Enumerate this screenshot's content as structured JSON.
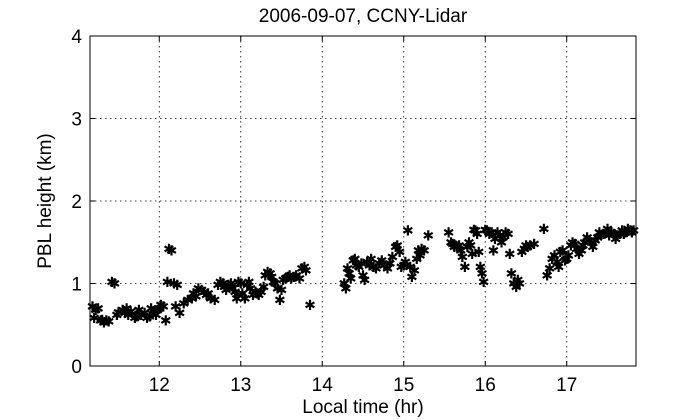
{
  "chart_data": {
    "type": "scatter",
    "title": "2006-09-07, CCNY-Lidar",
    "xlabel": "Local time (hr)",
    "ylabel": "PBL height (km)",
    "xlim": [
      11.15,
      17.85
    ],
    "ylim": [
      0,
      4
    ],
    "xticks": [
      12,
      13,
      14,
      15,
      16,
      17
    ],
    "yticks": [
      0,
      1,
      2,
      3,
      4
    ],
    "grid": true,
    "marker": "asterisk",
    "points": [
      [
        11.18,
        0.72
      ],
      [
        11.2,
        0.58
      ],
      [
        11.22,
        0.68
      ],
      [
        11.25,
        0.7
      ],
      [
        11.28,
        0.55
      ],
      [
        11.3,
        0.56
      ],
      [
        11.32,
        0.53
      ],
      [
        11.35,
        0.55
      ],
      [
        11.38,
        0.54
      ],
      [
        11.42,
        1.02
      ],
      [
        11.45,
        1.0
      ],
      [
        11.48,
        0.62
      ],
      [
        11.5,
        0.65
      ],
      [
        11.55,
        0.68
      ],
      [
        11.58,
        0.64
      ],
      [
        11.6,
        0.7
      ],
      [
        11.62,
        0.62
      ],
      [
        11.65,
        0.66
      ],
      [
        11.7,
        0.58
      ],
      [
        11.72,
        0.6
      ],
      [
        11.75,
        0.68
      ],
      [
        11.78,
        0.62
      ],
      [
        11.82,
        0.64
      ],
      [
        11.85,
        0.58
      ],
      [
        11.88,
        0.6
      ],
      [
        11.9,
        0.7
      ],
      [
        11.93,
        0.66
      ],
      [
        11.96,
        0.62
      ],
      [
        11.98,
        0.68
      ],
      [
        12.0,
        0.7
      ],
      [
        12.02,
        0.74
      ],
      [
        12.05,
        0.72
      ],
      [
        12.08,
        0.55
      ],
      [
        12.1,
        1.02
      ],
      [
        12.12,
        1.42
      ],
      [
        12.15,
        1.4
      ],
      [
        12.18,
        1.0
      ],
      [
        12.2,
        0.72
      ],
      [
        12.22,
        0.98
      ],
      [
        12.25,
        0.64
      ],
      [
        12.3,
        0.76
      ],
      [
        12.35,
        0.8
      ],
      [
        12.4,
        0.82
      ],
      [
        12.42,
        0.88
      ],
      [
        12.45,
        0.84
      ],
      [
        12.48,
        0.94
      ],
      [
        12.52,
        0.92
      ],
      [
        12.55,
        0.9
      ],
      [
        12.58,
        0.86
      ],
      [
        12.6,
        0.88
      ],
      [
        12.63,
        0.82
      ],
      [
        12.68,
        0.8
      ],
      [
        12.72,
        0.98
      ],
      [
        12.75,
        1.02
      ],
      [
        12.78,
        1.0
      ],
      [
        12.8,
        0.96
      ],
      [
        12.82,
        0.92
      ],
      [
        12.85,
        0.98
      ],
      [
        12.88,
        1.0
      ],
      [
        12.9,
        0.94
      ],
      [
        12.93,
        0.9
      ],
      [
        12.95,
        0.82
      ],
      [
        12.97,
        1.02
      ],
      [
        13.0,
        1.0
      ],
      [
        13.02,
        0.88
      ],
      [
        13.05,
        0.82
      ],
      [
        13.08,
        0.98
      ],
      [
        13.1,
        1.02
      ],
      [
        13.12,
        0.94
      ],
      [
        13.15,
        0.86
      ],
      [
        13.18,
        0.9
      ],
      [
        13.2,
        0.88
      ],
      [
        13.22,
        0.86
      ],
      [
        13.25,
        0.9
      ],
      [
        13.28,
        0.96
      ],
      [
        13.3,
        1.1
      ],
      [
        13.33,
        1.14
      ],
      [
        13.36,
        1.12
      ],
      [
        13.38,
        1.08
      ],
      [
        13.4,
        1.02
      ],
      [
        13.42,
        1.0
      ],
      [
        13.45,
        0.94
      ],
      [
        13.48,
        0.8
      ],
      [
        13.5,
        0.92
      ],
      [
        13.52,
        1.04
      ],
      [
        13.55,
        1.06
      ],
      [
        13.58,
        1.08
      ],
      [
        13.6,
        1.1
      ],
      [
        13.62,
        1.06
      ],
      [
        13.65,
        1.08
      ],
      [
        13.68,
        1.1
      ],
      [
        13.72,
        1.06
      ],
      [
        13.75,
        1.18
      ],
      [
        13.78,
        1.2
      ],
      [
        13.8,
        1.16
      ],
      [
        13.85,
        0.74
      ],
      [
        14.27,
        1.0
      ],
      [
        14.29,
        0.94
      ],
      [
        14.31,
        1.18
      ],
      [
        14.33,
        1.12
      ],
      [
        14.35,
        1.06
      ],
      [
        14.38,
        1.28
      ],
      [
        14.4,
        1.3
      ],
      [
        14.42,
        1.22
      ],
      [
        14.45,
        1.2
      ],
      [
        14.48,
        1.24
      ],
      [
        14.5,
        1.1
      ],
      [
        14.52,
        1.04
      ],
      [
        14.55,
        1.26
      ],
      [
        14.58,
        1.22
      ],
      [
        14.6,
        1.3
      ],
      [
        14.63,
        1.2
      ],
      [
        14.66,
        1.18
      ],
      [
        14.7,
        1.24
      ],
      [
        14.73,
        1.28
      ],
      [
        14.76,
        1.22
      ],
      [
        14.8,
        1.18
      ],
      [
        14.83,
        1.24
      ],
      [
        14.86,
        1.32
      ],
      [
        14.9,
        1.44
      ],
      [
        14.92,
        1.46
      ],
      [
        14.95,
        1.38
      ],
      [
        14.97,
        1.2
      ],
      [
        15.0,
        1.22
      ],
      [
        15.02,
        1.26
      ],
      [
        15.05,
        1.64
      ],
      [
        15.08,
        1.2
      ],
      [
        15.1,
        1.08
      ],
      [
        15.13,
        1.16
      ],
      [
        15.16,
        1.3
      ],
      [
        15.18,
        1.4
      ],
      [
        15.2,
        1.34
      ],
      [
        15.22,
        1.42
      ],
      [
        15.25,
        1.4
      ],
      [
        15.3,
        1.58
      ],
      [
        15.55,
        1.62
      ],
      [
        15.58,
        1.5
      ],
      [
        15.6,
        1.48
      ],
      [
        15.62,
        1.44
      ],
      [
        15.65,
        1.45
      ],
      [
        15.68,
        1.46
      ],
      [
        15.7,
        1.4
      ],
      [
        15.72,
        1.32
      ],
      [
        15.75,
        1.2
      ],
      [
        15.78,
        1.44
      ],
      [
        15.8,
        1.5
      ],
      [
        15.82,
        1.46
      ],
      [
        15.84,
        1.36
      ],
      [
        15.86,
        1.65
      ],
      [
        15.88,
        1.64
      ],
      [
        15.9,
        1.6
      ],
      [
        15.92,
        1.38
      ],
      [
        15.94,
        1.2
      ],
      [
        15.96,
        1.12
      ],
      [
        15.98,
        1.02
      ],
      [
        16.0,
        1.65
      ],
      [
        16.02,
        1.64
      ],
      [
        16.05,
        1.6
      ],
      [
        16.08,
        1.62
      ],
      [
        16.1,
        1.4
      ],
      [
        16.12,
        1.54
      ],
      [
        16.15,
        1.62
      ],
      [
        16.18,
        1.58
      ],
      [
        16.2,
        1.5
      ],
      [
        16.22,
        1.56
      ],
      [
        16.25,
        1.62
      ],
      [
        16.28,
        1.6
      ],
      [
        16.3,
        1.36
      ],
      [
        16.32,
        1.12
      ],
      [
        16.35,
        1.0
      ],
      [
        16.38,
        0.96
      ],
      [
        16.4,
        1.04
      ],
      [
        16.42,
        1.0
      ],
      [
        16.45,
        1.38
      ],
      [
        16.48,
        1.42
      ],
      [
        16.5,
        1.46
      ],
      [
        16.52,
        1.44
      ],
      [
        16.55,
        1.46
      ],
      [
        16.6,
        1.48
      ],
      [
        16.72,
        1.66
      ],
      [
        16.76,
        1.1
      ],
      [
        16.79,
        1.18
      ],
      [
        16.82,
        1.3
      ],
      [
        16.85,
        1.34
      ],
      [
        16.88,
        1.26
      ],
      [
        16.9,
        1.2
      ],
      [
        16.92,
        1.38
      ],
      [
        16.95,
        1.4
      ],
      [
        16.98,
        1.28
      ],
      [
        17.0,
        1.3
      ],
      [
        17.02,
        1.34
      ],
      [
        17.05,
        1.46
      ],
      [
        17.07,
        1.5
      ],
      [
        17.1,
        1.48
      ],
      [
        17.12,
        1.42
      ],
      [
        17.15,
        1.36
      ],
      [
        17.18,
        1.4
      ],
      [
        17.2,
        1.46
      ],
      [
        17.22,
        1.5
      ],
      [
        17.25,
        1.56
      ],
      [
        17.28,
        1.52
      ],
      [
        17.3,
        1.5
      ],
      [
        17.32,
        1.44
      ],
      [
        17.35,
        1.52
      ],
      [
        17.38,
        1.56
      ],
      [
        17.4,
        1.62
      ],
      [
        17.42,
        1.58
      ],
      [
        17.45,
        1.6
      ],
      [
        17.48,
        1.62
      ],
      [
        17.5,
        1.66
      ],
      [
        17.52,
        1.58
      ],
      [
        17.55,
        1.62
      ],
      [
        17.58,
        1.6
      ],
      [
        17.6,
        1.54
      ],
      [
        17.62,
        1.58
      ],
      [
        17.65,
        1.6
      ],
      [
        17.68,
        1.64
      ],
      [
        17.7,
        1.6
      ],
      [
        17.72,
        1.62
      ],
      [
        17.75,
        1.66
      ],
      [
        17.78,
        1.64
      ],
      [
        17.8,
        1.62
      ],
      [
        17.82,
        1.64
      ]
    ]
  }
}
